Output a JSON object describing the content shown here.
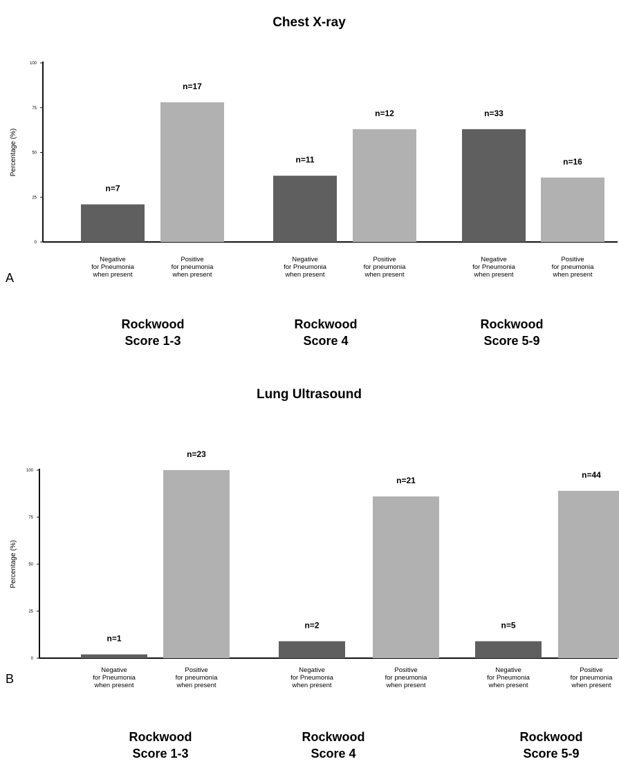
{
  "colors": {
    "negative": "#5f5f5f",
    "positive": "#b1b1b1",
    "axis": "#111111"
  },
  "chart_data": [
    {
      "type": "bar",
      "panel": "A",
      "title": "Chest X-ray",
      "ylabel": "Percentage (%)",
      "ylim": [
        0,
        100
      ],
      "yticks": [
        "0",
        "25",
        "50",
        "75",
        "100"
      ],
      "grid": false,
      "groups": [
        {
          "label_line1": "Rockwood",
          "label_line2": "Score 1-3",
          "bars": [
            {
              "category": [
                "Negative",
                "for Pneumonia",
                "when present"
              ],
              "value": 21,
              "n_label": "n=7",
              "series": "negative"
            },
            {
              "category": [
                "Positive",
                "for pneumonia",
                "when present"
              ],
              "value": 78,
              "n_label": "n=17",
              "series": "positive"
            }
          ]
        },
        {
          "label_line1": "Rockwood",
          "label_line2": "Score 4",
          "bars": [
            {
              "category": [
                "Negative",
                "for Pneumonia",
                "when present"
              ],
              "value": 37,
              "n_label": "n=11",
              "series": "negative"
            },
            {
              "category": [
                "Positive",
                "for pneumonia",
                "when present"
              ],
              "value": 63,
              "n_label": "n=12",
              "series": "positive"
            }
          ]
        },
        {
          "label_line1": "Rockwood",
          "label_line2": "Score 5-9",
          "bars": [
            {
              "category": [
                "Negative",
                "for Pneumonia",
                "when present"
              ],
              "value": 63,
              "n_label": "n=33",
              "series": "negative"
            },
            {
              "category": [
                "Positive",
                "for pneumonia",
                "when present"
              ],
              "value": 36,
              "n_label": "n=16",
              "series": "positive"
            }
          ]
        }
      ]
    },
    {
      "type": "bar",
      "panel": "B",
      "title": "Lung Ultrasound",
      "ylabel": "Percentage (%)",
      "ylim": [
        0,
        100
      ],
      "yticks": [
        "0",
        "25",
        "50",
        "75",
        "100"
      ],
      "grid": false,
      "groups": [
        {
          "label_line1": "Rockwood",
          "label_line2": "Score 1-3",
          "bars": [
            {
              "category": [
                "Negative",
                "for Pneumonia",
                "when present"
              ],
              "value": 2,
              "n_label": "n=1",
              "series": "negative"
            },
            {
              "category": [
                "Positive",
                "for pneumonia",
                "when present"
              ],
              "value": 100,
              "n_label": "n=23",
              "series": "positive"
            }
          ]
        },
        {
          "label_line1": "Rockwood",
          "label_line2": "Score 4",
          "bars": [
            {
              "category": [
                "Negative",
                "for Pneumonia",
                "when present"
              ],
              "value": 9,
              "n_label": "n=2",
              "series": "negative"
            },
            {
              "category": [
                "Positive",
                "for pneumonia",
                "when present"
              ],
              "value": 86,
              "n_label": "n=21",
              "series": "positive"
            }
          ]
        },
        {
          "label_line1": "Rockwood",
          "label_line2": "Score 5-9",
          "bars": [
            {
              "category": [
                "Negative",
                "for Pneumonia",
                "when present"
              ],
              "value": 9,
              "n_label": "n=5",
              "series": "negative"
            },
            {
              "category": [
                "Positive",
                "for pneumonia",
                "when present"
              ],
              "value": 89,
              "n_label": "n=44",
              "series": "positive"
            }
          ]
        }
      ]
    }
  ]
}
